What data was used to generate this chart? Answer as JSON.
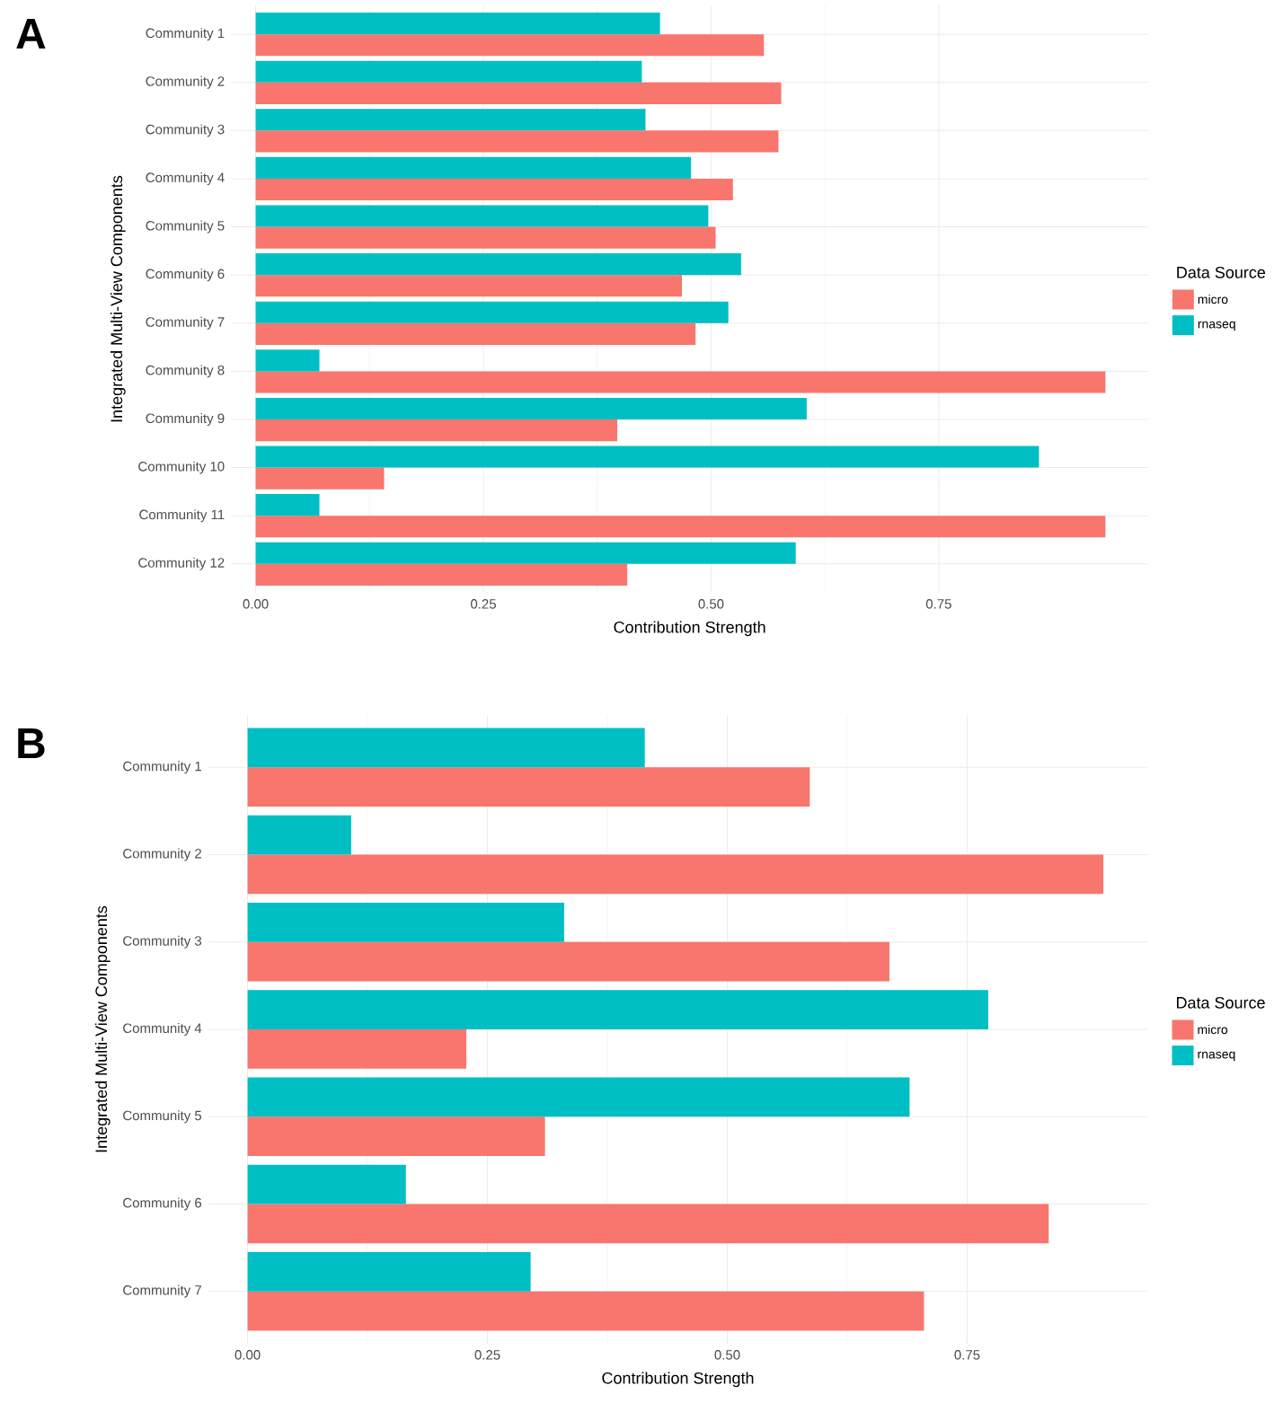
{
  "chart_data": [
    {
      "type": "bar",
      "orientation": "horizontal",
      "title": "A",
      "xlabel": "Contribution Strength",
      "ylabel": "Integrated Multi-View Components",
      "legend_title": "Data Source",
      "legend": "right",
      "grid": true,
      "categories": [
        "Community 1",
        "Community 2",
        "Community 3",
        "Community 4",
        "Community 5",
        "Community 6",
        "Community 7",
        "Community 8",
        "Community 9",
        "Community 10",
        "Community 11",
        "Community 12"
      ],
      "series": [
        {
          "name": "micro",
          "color": "#f8766d",
          "values": [
            0.558,
            0.577,
            0.574,
            0.524,
            0.505,
            0.468,
            0.483,
            0.933,
            0.397,
            0.141,
            0.933,
            0.408
          ]
        },
        {
          "name": "rnaseq",
          "color": "#00bfc4",
          "values": [
            0.444,
            0.424,
            0.428,
            0.478,
            0.497,
            0.533,
            0.519,
            0.07,
            0.605,
            0.86,
            0.07,
            0.593
          ]
        }
      ],
      "xlim": [
        -0.027,
        0.98
      ],
      "xticks": [
        {
          "value": 0,
          "label": "0.00"
        },
        {
          "value": 0.25,
          "label": "0.25"
        },
        {
          "value": 0.5,
          "label": "0.50"
        },
        {
          "value": 0.75,
          "label": "0.75"
        }
      ]
    },
    {
      "type": "bar",
      "orientation": "horizontal",
      "title": "B",
      "xlabel": "Contribution Strength",
      "ylabel": "Integrated Multi-View Components",
      "legend_title": "Data Source",
      "legend": "right",
      "grid": true,
      "categories": [
        "Community 1",
        "Community 2",
        "Community 3",
        "Community 4",
        "Community 5",
        "Community 6",
        "Community 7"
      ],
      "series": [
        {
          "name": "micro",
          "color": "#f8766d",
          "values": [
            0.586,
            0.892,
            0.669,
            0.228,
            0.31,
            0.835,
            0.705
          ]
        },
        {
          "name": "rnaseq",
          "color": "#00bfc4",
          "values": [
            0.414,
            0.108,
            0.33,
            0.772,
            0.69,
            0.165,
            0.295
          ]
        }
      ],
      "xlim": [
        -0.041,
        0.938
      ],
      "xticks": [
        {
          "value": 0,
          "label": "0.00"
        },
        {
          "value": 0.25,
          "label": "0.25"
        },
        {
          "value": 0.5,
          "label": "0.50"
        },
        {
          "value": 0.75,
          "label": "0.75"
        }
      ]
    }
  ]
}
